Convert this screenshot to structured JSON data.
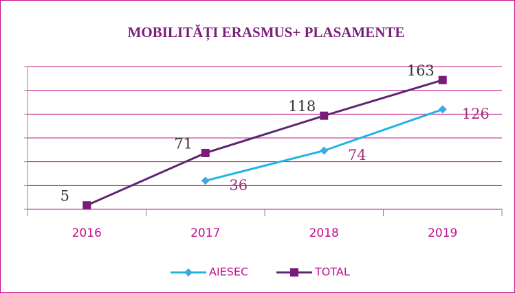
{
  "chart_data": {
    "type": "line",
    "title": "MOBILITĂȚI ERASMUS+ PLASAMENTE",
    "categories": [
      "2016",
      "2017",
      "2018",
      "2019"
    ],
    "series": [
      {
        "name": "AIESEC",
        "color": "#1fb4e6",
        "values": [
          null,
          36,
          74,
          126
        ]
      },
      {
        "name": "TOTAL",
        "color": "#5e2672",
        "values": [
          5,
          71,
          118,
          163
        ]
      }
    ],
    "ylim": [
      0,
      180
    ],
    "yticks": [
      0,
      30,
      60,
      90,
      120,
      150,
      180
    ],
    "grid": true,
    "legend": "bottom"
  }
}
